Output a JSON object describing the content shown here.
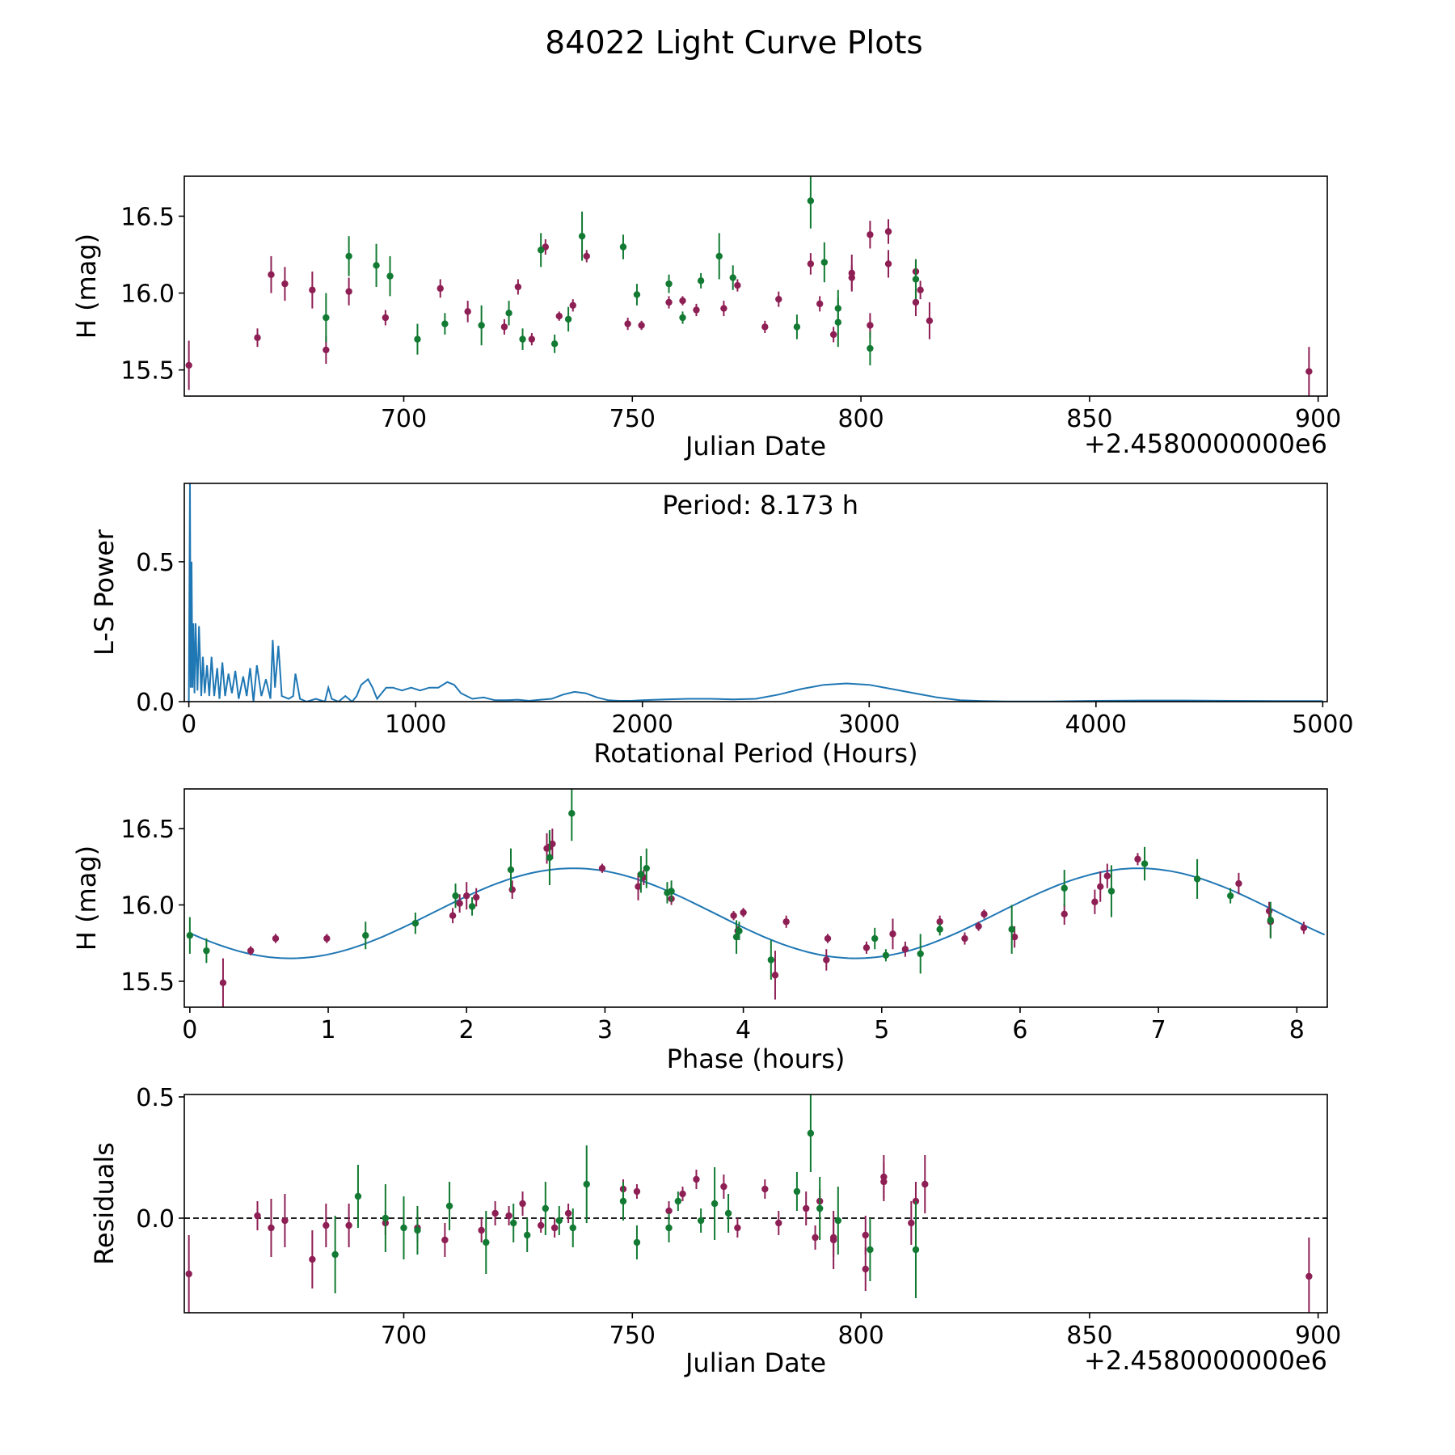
{
  "title": "84022 Light Curve Plots",
  "colors": {
    "filter_a": "#8e1f55",
    "filter_b": "#127a32",
    "model": "#1f77b4",
    "axis": "#000000"
  },
  "chart_data": [
    {
      "id": "light_curve",
      "type": "scatter",
      "title": "",
      "xlabel": "Julian Date",
      "ylabel": "H (mag)",
      "offset_text": "+2.4580000000e6",
      "xlim": [
        652,
        902
      ],
      "ylim": [
        15.33,
        16.76
      ],
      "xticks": [
        700,
        750,
        800,
        850,
        900
      ],
      "xtick_labels": [
        "700",
        "750",
        "800",
        "850",
        "900"
      ],
      "yticks": [
        15.5,
        16.0,
        16.5
      ],
      "ytick_labels": [
        "15.5",
        "16.0",
        "16.5"
      ],
      "series": [
        {
          "name": "filter_a",
          "color": "#8e1f55",
          "x": [
            653,
            668,
            671,
            674,
            680,
            683,
            688,
            696,
            708,
            714,
            722,
            725,
            728,
            731,
            734,
            737,
            740,
            749,
            752,
            758,
            761,
            764,
            770,
            773,
            779,
            782,
            789,
            791,
            794,
            798,
            798,
            802,
            802,
            806,
            806,
            812,
            812,
            813,
            815,
            898
          ],
          "y": [
            15.53,
            15.71,
            16.12,
            16.06,
            16.02,
            15.63,
            16.01,
            15.84,
            16.03,
            15.88,
            15.78,
            16.04,
            15.7,
            16.3,
            15.85,
            15.92,
            16.24,
            15.8,
            15.79,
            15.94,
            15.95,
            15.89,
            15.9,
            16.05,
            15.78,
            15.96,
            16.19,
            15.93,
            15.73,
            16.1,
            16.13,
            15.79,
            16.38,
            16.4,
            16.19,
            15.94,
            16.14,
            16.02,
            15.82,
            15.49
          ],
          "err": [
            0.16,
            0.06,
            0.12,
            0.11,
            0.12,
            0.09,
            0.09,
            0.05,
            0.06,
            0.07,
            0.05,
            0.05,
            0.04,
            0.05,
            0.03,
            0.04,
            0.04,
            0.04,
            0.03,
            0.04,
            0.03,
            0.04,
            0.05,
            0.04,
            0.04,
            0.05,
            0.07,
            0.05,
            0.05,
            0.08,
            0.12,
            0.08,
            0.09,
            0.08,
            0.09,
            0.09,
            0.08,
            0.06,
            0.12,
            0.16
          ]
        },
        {
          "name": "filter_b",
          "color": "#127a32",
          "x": [
            683,
            688,
            694,
            697,
            703,
            709,
            717,
            723,
            726,
            730,
            733,
            736,
            739,
            748,
            751,
            758,
            761,
            765,
            769,
            772,
            786,
            789,
            792,
            795,
            795,
            802,
            812
          ],
          "y": [
            15.84,
            16.24,
            16.18,
            16.11,
            15.7,
            15.8,
            15.79,
            15.87,
            15.7,
            16.28,
            15.67,
            15.83,
            16.37,
            16.3,
            15.99,
            16.06,
            15.84,
            16.08,
            16.24,
            16.1,
            15.78,
            16.6,
            16.2,
            15.9,
            15.81,
            15.64,
            16.09
          ],
          "err": [
            0.16,
            0.13,
            0.14,
            0.13,
            0.1,
            0.07,
            0.13,
            0.08,
            0.07,
            0.11,
            0.06,
            0.08,
            0.16,
            0.08,
            0.07,
            0.06,
            0.04,
            0.05,
            0.15,
            0.08,
            0.08,
            0.18,
            0.13,
            0.12,
            0.16,
            0.11,
            0.13
          ]
        }
      ]
    },
    {
      "id": "periodogram",
      "type": "line",
      "xlabel": "Rotational Period (Hours)",
      "ylabel": "L-S Power",
      "annotation": "Period: 8.173 h",
      "xlim": [
        -20,
        5020
      ],
      "ylim": [
        0,
        0.78
      ],
      "xticks": [
        0,
        1000,
        2000,
        3000,
        4000,
        5000
      ],
      "xtick_labels": [
        "0",
        "1000",
        "2000",
        "3000",
        "4000",
        "5000"
      ],
      "yticks": [
        0.0,
        0.5
      ],
      "ytick_labels": [
        "0.0",
        "0.5"
      ],
      "series": [
        {
          "name": "L-S power",
          "color": "#1f77b4",
          "x": [
            0,
            5,
            8,
            12,
            16,
            20,
            25,
            30,
            38,
            45,
            55,
            62,
            70,
            80,
            90,
            100,
            112,
            125,
            135,
            148,
            160,
            175,
            190,
            205,
            220,
            240,
            255,
            270,
            285,
            300,
            320,
            340,
            360,
            370,
            380,
            395,
            410,
            440,
            460,
            470,
            490,
            520,
            560,
            600,
            615,
            630,
            660,
            690,
            720,
            740,
            760,
            790,
            810,
            830,
            870,
            900,
            940,
            980,
            1020,
            1060,
            1100,
            1140,
            1170,
            1200,
            1250,
            1300,
            1350,
            1400,
            1450,
            1500,
            1550,
            1600,
            1650,
            1700,
            1750,
            1800,
            1850,
            1900,
            1950,
            2000,
            2100,
            2200,
            2300,
            2400,
            2500,
            2600,
            2700,
            2800,
            2900,
            3000,
            3100,
            3200,
            3300,
            3400,
            3500,
            3600,
            3800,
            4000,
            4200,
            4400,
            4600,
            4800,
            5000
          ],
          "y": [
            0.0,
            0.78,
            0.05,
            0.5,
            0.05,
            0.28,
            0.03,
            0.28,
            0.04,
            0.27,
            0.02,
            0.16,
            0.03,
            0.13,
            0.02,
            0.16,
            0.02,
            0.12,
            0.01,
            0.14,
            0.02,
            0.1,
            0.03,
            0.11,
            0.01,
            0.09,
            0.02,
            0.12,
            0.0,
            0.13,
            0.02,
            0.08,
            0.01,
            0.22,
            0.05,
            0.2,
            0.02,
            0.01,
            0.02,
            0.1,
            0.01,
            0.0,
            0.01,
            0.0,
            0.05,
            0.01,
            0.0,
            0.02,
            0.0,
            0.02,
            0.06,
            0.08,
            0.05,
            0.01,
            0.05,
            0.05,
            0.04,
            0.05,
            0.04,
            0.05,
            0.05,
            0.07,
            0.06,
            0.03,
            0.01,
            0.015,
            0.005,
            0.005,
            0.007,
            0.003,
            0.007,
            0.01,
            0.025,
            0.035,
            0.03,
            0.015,
            0.005,
            0.003,
            0.003,
            0.005,
            0.008,
            0.01,
            0.01,
            0.008,
            0.01,
            0.025,
            0.045,
            0.06,
            0.065,
            0.06,
            0.045,
            0.03,
            0.015,
            0.005,
            0.002,
            0.001,
            0.001,
            0.003,
            0.004,
            0.004,
            0.003,
            0.002,
            0.002
          ]
        }
      ]
    },
    {
      "id": "phased",
      "type": "scatter",
      "xlabel": "Phase (hours)",
      "ylabel": "H (mag)",
      "xlim": [
        -0.04,
        8.22
      ],
      "ylim": [
        15.33,
        16.76
      ],
      "xticks": [
        0,
        1,
        2,
        3,
        4,
        5,
        6,
        7,
        8
      ],
      "xtick_labels": [
        "0",
        "1",
        "2",
        "3",
        "4",
        "5",
        "6",
        "7",
        "8"
      ],
      "yticks": [
        15.5,
        16.0,
        16.5
      ],
      "ytick_labels": [
        "15.5",
        "16.0",
        "16.5"
      ],
      "model": {
        "name": "sinusoid fit",
        "color": "#1f77b4",
        "period_hours": 8.173,
        "mean": 15.945,
        "amplitude": 0.295,
        "peak_phase": 2.77,
        "x_start": 0.0,
        "x_end": 8.2
      },
      "series": [
        {
          "name": "filter_a",
          "color": "#8e1f55",
          "x": [
            0.24,
            0.44,
            0.62,
            0.99,
            1.9,
            1.95,
            2.0,
            2.07,
            2.33,
            2.58,
            2.6,
            2.62,
            2.98,
            3.24,
            3.28,
            3.48,
            3.93,
            4.0,
            4.23,
            4.31,
            4.6,
            4.61,
            4.89,
            5.08,
            5.17,
            5.42,
            5.6,
            5.74,
            5.96,
            6.32,
            6.54,
            6.58,
            6.63,
            6.85,
            7.58,
            7.8,
            7.81,
            8.05,
            3.96,
            5.7
          ],
          "y": [
            15.49,
            15.7,
            15.78,
            15.78,
            15.93,
            16.01,
            16.06,
            16.05,
            16.1,
            16.37,
            16.38,
            16.4,
            16.24,
            16.12,
            16.18,
            16.04,
            15.93,
            15.95,
            15.54,
            15.89,
            15.64,
            15.78,
            15.72,
            15.81,
            15.71,
            15.89,
            15.78,
            15.94,
            15.79,
            15.94,
            16.02,
            16.12,
            16.19,
            16.3,
            16.14,
            15.96,
            15.89,
            15.85,
            15.83,
            15.86
          ],
          "err": [
            0.16,
            0.03,
            0.03,
            0.03,
            0.05,
            0.06,
            0.09,
            0.06,
            0.06,
            0.1,
            0.1,
            0.1,
            0.03,
            0.09,
            0.05,
            0.04,
            0.03,
            0.03,
            0.16,
            0.04,
            0.07,
            0.03,
            0.04,
            0.1,
            0.05,
            0.04,
            0.04,
            0.03,
            0.07,
            0.07,
            0.08,
            0.1,
            0.08,
            0.04,
            0.07,
            0.06,
            0.1,
            0.04,
            0.03,
            0.03
          ]
        },
        {
          "name": "filter_b",
          "color": "#127a32",
          "x": [
            0.0,
            0.12,
            1.27,
            1.63,
            1.92,
            2.04,
            2.32,
            2.6,
            2.76,
            3.26,
            3.3,
            3.45,
            3.48,
            3.95,
            3.97,
            4.2,
            4.95,
            5.03,
            5.28,
            5.42,
            5.94,
            6.32,
            6.66,
            6.9,
            7.28,
            7.52,
            7.81
          ],
          "y": [
            15.8,
            15.7,
            15.8,
            15.88,
            16.06,
            15.99,
            16.23,
            16.31,
            16.6,
            16.2,
            16.24,
            16.08,
            16.09,
            15.79,
            15.83,
            15.64,
            15.78,
            15.67,
            15.68,
            15.84,
            15.84,
            16.11,
            16.09,
            16.27,
            16.17,
            16.06,
            15.9
          ],
          "err": [
            0.12,
            0.08,
            0.09,
            0.07,
            0.08,
            0.06,
            0.14,
            0.18,
            0.18,
            0.12,
            0.13,
            0.07,
            0.07,
            0.11,
            0.06,
            0.13,
            0.07,
            0.04,
            0.13,
            0.04,
            0.16,
            0.12,
            0.17,
            0.11,
            0.13,
            0.05,
            0.12
          ]
        }
      ]
    },
    {
      "id": "residuals",
      "type": "scatter",
      "xlabel": "Julian Date",
      "ylabel": "Residuals",
      "offset_text": "+2.4580000000e6",
      "xlim": [
        652,
        902
      ],
      "ylim": [
        -0.39,
        0.51
      ],
      "xticks": [
        700,
        750,
        800,
        850,
        900
      ],
      "xtick_labels": [
        "700",
        "750",
        "800",
        "850",
        "900"
      ],
      "yticks": [
        0.0,
        0.5
      ],
      "ytick_labels": [
        "0.0",
        "0.5"
      ],
      "reference_line": 0.0,
      "series": [
        {
          "name": "filter_a",
          "color": "#8e1f55",
          "x": [
            653,
            668,
            671,
            674,
            680,
            683,
            688,
            696,
            703,
            709,
            717,
            720,
            723,
            726,
            730,
            733,
            736,
            748,
            751,
            758,
            761,
            764,
            770,
            773,
            779,
            782,
            788,
            790,
            791,
            794,
            794,
            801,
            801,
            805,
            805,
            811,
            812,
            814,
            898
          ],
          "y": [
            -0.23,
            0.01,
            -0.04,
            -0.01,
            -0.17,
            -0.03,
            -0.03,
            -0.02,
            -0.04,
            -0.09,
            -0.05,
            0.02,
            0.01,
            0.06,
            -0.03,
            -0.04,
            0.02,
            0.12,
            0.11,
            0.03,
            0.1,
            0.16,
            0.13,
            -0.04,
            0.12,
            -0.02,
            0.04,
            -0.08,
            0.07,
            -0.08,
            -0.09,
            -0.07,
            -0.21,
            0.15,
            0.17,
            -0.02,
            0.07,
            0.14,
            -0.24
          ],
          "err": [
            0.16,
            0.06,
            0.12,
            0.11,
            0.12,
            0.09,
            0.09,
            0.05,
            0.06,
            0.07,
            0.05,
            0.05,
            0.04,
            0.05,
            0.03,
            0.04,
            0.04,
            0.04,
            0.03,
            0.04,
            0.03,
            0.04,
            0.05,
            0.04,
            0.04,
            0.05,
            0.07,
            0.05,
            0.05,
            0.08,
            0.12,
            0.08,
            0.09,
            0.08,
            0.09,
            0.09,
            0.08,
            0.12,
            0.16
          ]
        },
        {
          "name": "filter_b",
          "color": "#127a32",
          "x": [
            685,
            690,
            696,
            700,
            703,
            710,
            718,
            724,
            727,
            731,
            734,
            737,
            740,
            748,
            751,
            758,
            760,
            765,
            768,
            771,
            786,
            789,
            791,
            795,
            802,
            812
          ],
          "y": [
            -0.15,
            0.09,
            0.0,
            -0.04,
            -0.05,
            0.05,
            -0.1,
            -0.02,
            -0.07,
            0.04,
            -0.01,
            -0.04,
            0.14,
            0.07,
            -0.1,
            -0.04,
            0.07,
            -0.01,
            0.06,
            0.02,
            0.11,
            0.35,
            0.04,
            -0.01,
            -0.13,
            -0.13
          ],
          "err": [
            0.16,
            0.13,
            0.14,
            0.13,
            0.1,
            0.1,
            0.13,
            0.08,
            0.07,
            0.11,
            0.06,
            0.08,
            0.16,
            0.08,
            0.07,
            0.06,
            0.04,
            0.05,
            0.15,
            0.08,
            0.08,
            0.16,
            0.13,
            0.14,
            0.13,
            0.2
          ]
        }
      ]
    }
  ]
}
